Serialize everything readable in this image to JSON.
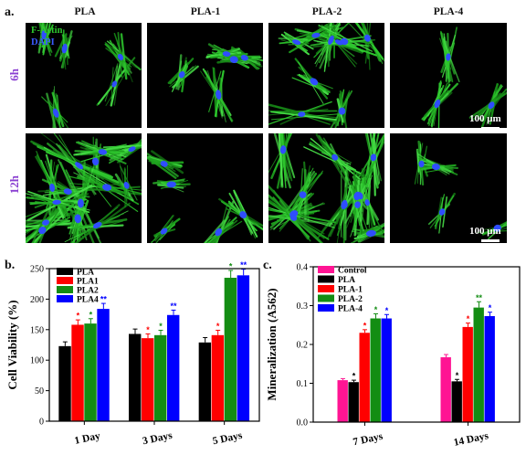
{
  "panel_a": {
    "letter": "a.",
    "columns": [
      "PLA",
      "PLA-1",
      "PLA-2",
      "PLA-4"
    ],
    "rows": [
      "6h",
      "12h"
    ],
    "legend": {
      "factin": "F-Actin",
      "dapi": "DAPI"
    },
    "scale_label": "100 μm",
    "colors": {
      "factin": "#2ec82e",
      "dapi": "#3050ff",
      "row_label": "#8a3fd1"
    }
  },
  "chart_data": [
    {
      "type": "bar",
      "panel": "b.",
      "categories": [
        "1 Day",
        "3 Days",
        "5 Days"
      ],
      "ylabel": "Cell Viability (%)",
      "ylim": [
        0,
        250
      ],
      "yticks": [
        0,
        50,
        100,
        150,
        200,
        250
      ],
      "legend_position": "top-left",
      "series": [
        {
          "name": "PLA",
          "color": "#000000",
          "values": [
            123,
            143,
            129
          ],
          "errors": [
            7,
            8,
            8
          ],
          "sig": [
            "",
            "",
            ""
          ]
        },
        {
          "name": "PLA1",
          "color": "#ff0000",
          "values": [
            158,
            136,
            141
          ],
          "errors": [
            8,
            7,
            8
          ],
          "sig": [
            "*",
            "*",
            "*"
          ]
        },
        {
          "name": "PLA2",
          "color": "#138d13",
          "values": [
            160,
            141,
            235
          ],
          "errors": [
            8,
            8,
            12
          ],
          "sig": [
            "*",
            "*",
            "*"
          ]
        },
        {
          "name": "PLA4",
          "color": "#0000ff",
          "values": [
            184,
            174,
            239
          ],
          "errors": [
            9,
            8,
            10
          ],
          "sig": [
            "**",
            "**",
            "**"
          ]
        }
      ]
    },
    {
      "type": "bar",
      "panel": "c.",
      "categories": [
        "7 Days",
        "14 Days"
      ],
      "ylabel": "Mineralization (A562)",
      "ylim": [
        0.0,
        0.4
      ],
      "yticks": [
        "0.0",
        "0.1",
        "0.2",
        "0.3",
        "0.4"
      ],
      "legend_position": "top-left",
      "series": [
        {
          "name": "Control",
          "color": "#ff1493",
          "values": [
            0.108,
            0.167
          ],
          "errors": [
            0.004,
            0.007
          ],
          "sig": [
            "",
            ""
          ]
        },
        {
          "name": "PLA",
          "color": "#000000",
          "values": [
            0.103,
            0.105
          ],
          "errors": [
            0.005,
            0.005
          ],
          "sig": [
            "*",
            "*"
          ]
        },
        {
          "name": "PLA-1",
          "color": "#ff0000",
          "values": [
            0.23,
            0.245
          ],
          "errors": [
            0.008,
            0.01
          ],
          "sig": [
            "*",
            "*"
          ]
        },
        {
          "name": "PLA-2",
          "color": "#138d13",
          "values": [
            0.267,
            0.295
          ],
          "errors": [
            0.012,
            0.015
          ],
          "sig": [
            "*",
            "**"
          ]
        },
        {
          "name": "PLA-4",
          "color": "#0000ff",
          "values": [
            0.267,
            0.273
          ],
          "errors": [
            0.01,
            0.01
          ],
          "sig": [
            "*",
            "*"
          ]
        }
      ]
    }
  ]
}
